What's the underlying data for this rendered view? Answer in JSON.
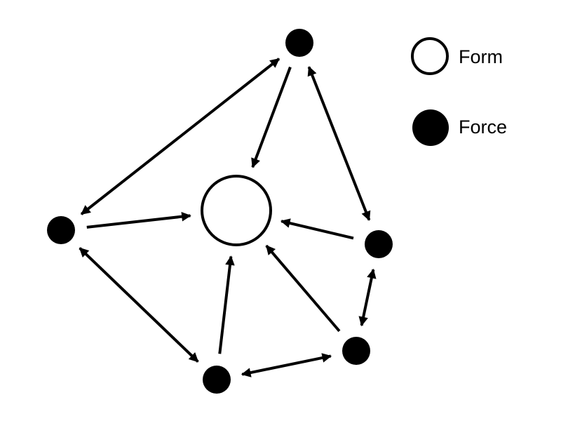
{
  "diagram": {
    "legend": [
      {
        "key": "form",
        "label": "Form",
        "style": "hollow"
      },
      {
        "key": "force",
        "label": "Force",
        "style": "filled"
      }
    ],
    "nodes": [
      {
        "id": "form-center",
        "type": "form"
      },
      {
        "id": "force-top",
        "type": "force"
      },
      {
        "id": "force-left",
        "type": "force"
      },
      {
        "id": "force-right",
        "type": "force"
      },
      {
        "id": "force-bottom-right",
        "type": "force"
      },
      {
        "id": "force-bottom",
        "type": "force"
      }
    ],
    "edges": [
      {
        "from": "force-top",
        "to": "form-center",
        "direction": "forward"
      },
      {
        "from": "force-left",
        "to": "form-center",
        "direction": "forward"
      },
      {
        "from": "force-right",
        "to": "form-center",
        "direction": "forward"
      },
      {
        "from": "force-bottom-right",
        "to": "form-center",
        "direction": "forward"
      },
      {
        "from": "force-bottom",
        "to": "form-center",
        "direction": "forward"
      },
      {
        "from": "force-top",
        "to": "force-left",
        "direction": "both"
      },
      {
        "from": "force-top",
        "to": "force-right",
        "direction": "both"
      },
      {
        "from": "force-left",
        "to": "force-bottom",
        "direction": "both"
      },
      {
        "from": "force-bottom",
        "to": "force-bottom-right",
        "direction": "both"
      },
      {
        "from": "force-bottom-right",
        "to": "force-right",
        "direction": "both"
      }
    ]
  },
  "colors": {
    "stroke": "#000000",
    "fill": "#000000",
    "background": "#ffffff"
  }
}
